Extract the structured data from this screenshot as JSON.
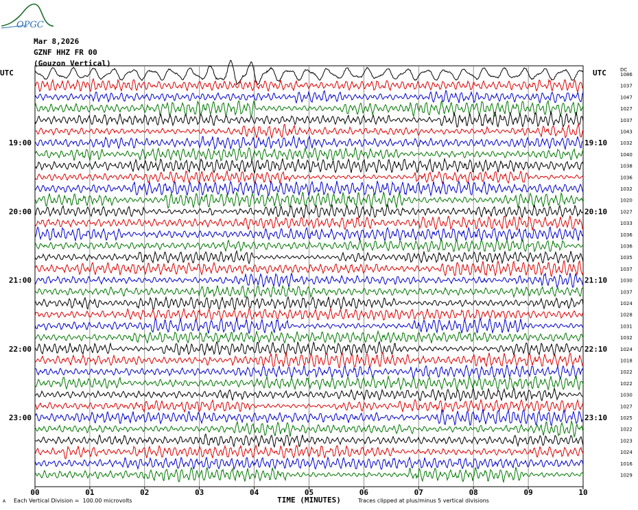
{
  "logo": {
    "text": "OPGC",
    "color": "#1c6e2a"
  },
  "header": {
    "date": "Mar 8,2026",
    "station": "GZNF HHZ FR 00",
    "location": "(Gouzon Vertical)"
  },
  "footer": {
    "scale_marker": "A",
    "division_note": "Each Vertical Division =  100.00 microvolts",
    "clip_note": "Traces clipped at plus/minus 5 vertical divisions"
  },
  "chart_data": {
    "type": "line",
    "title": "",
    "xlabel": "TIME (MINUTES)",
    "xlim": [
      0,
      10
    ],
    "x_ticks": [
      "00",
      "01",
      "02",
      "03",
      "04",
      "05",
      "06",
      "07",
      "08",
      "09",
      "10"
    ],
    "left_axis_label": "UTC",
    "right_axis_label": "UTC",
    "right_column_label": "DC",
    "left_time_labels": [
      {
        "row": 6,
        "label": "19:00"
      },
      {
        "row": 12,
        "label": "20:00"
      },
      {
        "row": 18,
        "label": "21:00"
      },
      {
        "row": 24,
        "label": "22:00"
      },
      {
        "row": 30,
        "label": "23:00"
      }
    ],
    "right_time_labels": [
      {
        "row": 6,
        "label": "19:10"
      },
      {
        "row": 12,
        "label": "20:10"
      },
      {
        "row": 18,
        "label": "21:10"
      },
      {
        "row": 24,
        "label": "22:10"
      },
      {
        "row": 30,
        "label": "23:10"
      }
    ],
    "trace_colors": [
      "#000000",
      "#dd0000",
      "#0000cc",
      "#007700"
    ],
    "row_interval_minutes": 10,
    "dc_offsets": [
      "1086",
      "1037",
      "1047",
      "1027",
      "1037",
      "1043",
      "1032",
      "1040",
      "1038",
      "1036",
      "1032",
      "1020",
      "1027",
      "1033",
      "1036",
      "1036",
      "1035",
      "1037",
      "1030",
      "1037",
      "1024",
      "1028",
      "1031",
      "1032",
      "1024",
      "1018",
      "1022",
      "1022",
      "1030",
      "1027",
      "1025",
      "1022",
      "1023",
      "1024",
      "1016",
      "1029"
    ],
    "grid": true
  }
}
